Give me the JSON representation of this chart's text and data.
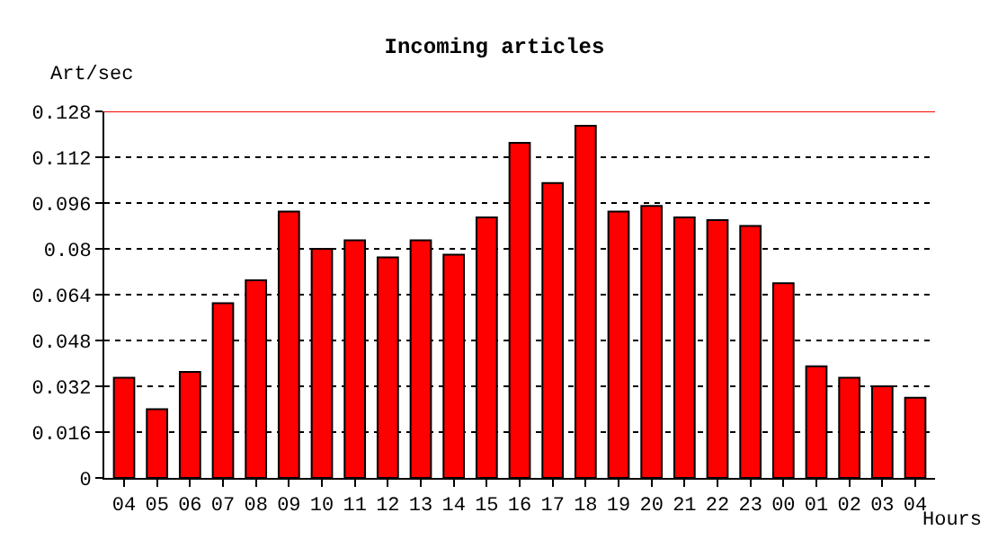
{
  "chart_data": {
    "type": "bar",
    "title": "Incoming articles",
    "ylabel": "Art/sec",
    "xlabel": "Hours",
    "categories": [
      "04",
      "05",
      "06",
      "07",
      "08",
      "09",
      "10",
      "11",
      "12",
      "13",
      "14",
      "15",
      "16",
      "17",
      "18",
      "19",
      "20",
      "21",
      "22",
      "23",
      "00",
      "01",
      "02",
      "03",
      "04"
    ],
    "values": [
      0.035,
      0.024,
      0.037,
      0.061,
      0.069,
      0.093,
      0.08,
      0.083,
      0.077,
      0.083,
      0.078,
      0.091,
      0.117,
      0.103,
      0.123,
      0.093,
      0.095,
      0.091,
      0.09,
      0.088,
      0.068,
      0.039,
      0.035,
      0.032,
      0.028
    ],
    "color": "#ff0000",
    "ylim": [
      0,
      0.128
    ],
    "yticks": [
      0,
      0.016,
      0.032,
      0.048,
      0.064,
      {
        "value": 0.08,
        "label": "0.08"
      },
      0.096,
      0.112,
      0.128
    ],
    "grid": "y",
    "line_style": "dotted",
    "ref_lines": [
      {
        "axis": "y",
        "value": 0.128,
        "color": "#ff0000"
      }
    ]
  }
}
